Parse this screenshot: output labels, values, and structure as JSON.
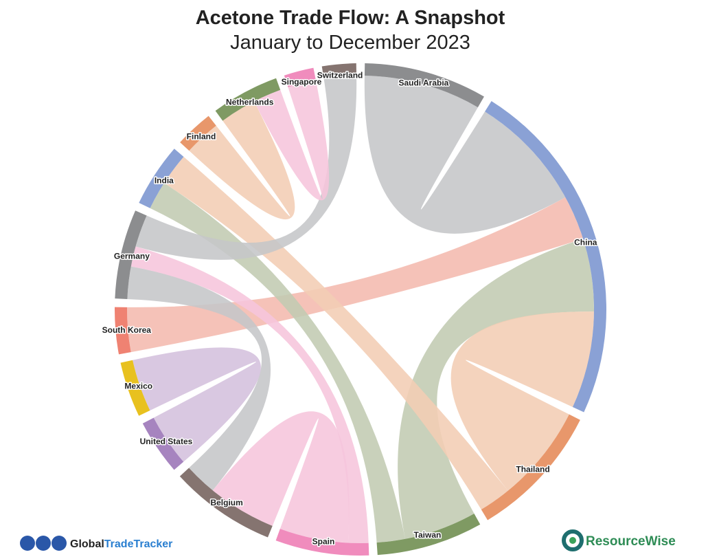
{
  "chart_data": {
    "type": "chord",
    "title": "Acetone Trade Flow: A Snapshot",
    "subtitle": "January to December 2023",
    "nodes": [
      {
        "name": "Saudi Arabia",
        "color": "#8c8d8f"
      },
      {
        "name": "China",
        "color": "#8aa1d5"
      },
      {
        "name": "Thailand",
        "color": "#e8976b"
      },
      {
        "name": "Taiwan",
        "color": "#7f9a63"
      },
      {
        "name": "Spain",
        "color": "#f08cbd"
      },
      {
        "name": "Belgium",
        "color": "#857470"
      },
      {
        "name": "United States",
        "color": "#a684bf"
      },
      {
        "name": "Mexico",
        "color": "#e8c11f"
      },
      {
        "name": "South Korea",
        "color": "#ef8272"
      },
      {
        "name": "Germany",
        "color": "#8c8d8f"
      },
      {
        "name": "India",
        "color": "#8aa1d5"
      },
      {
        "name": "Finland",
        "color": "#e8976b"
      },
      {
        "name": "Netherlands",
        "color": "#7f9a63"
      },
      {
        "name": "Singapore",
        "color": "#f08cbd"
      },
      {
        "name": "Switzerland",
        "color": "#857470"
      }
    ],
    "flows": [
      {
        "source": "Saudi Arabia",
        "target": "China",
        "value": 29,
        "color": "#c5c6c8"
      },
      {
        "source": "South Korea",
        "target": "China",
        "value": 11,
        "color": "#f4b9ae"
      },
      {
        "source": "China",
        "target": "Taiwan",
        "value": 18,
        "color": "#c1cbb2"
      },
      {
        "source": "China",
        "target": "Thailand",
        "value": 24,
        "color": "#f2cdb4"
      },
      {
        "source": "India",
        "target": "Thailand",
        "value": 8,
        "color": "#f2cdb4"
      },
      {
        "source": "India",
        "target": "Taiwan",
        "value": 7,
        "color": "#c1cbb2"
      },
      {
        "source": "Switzerland",
        "target": "Germany",
        "value": 8,
        "color": "#c5c6c8"
      },
      {
        "source": "Germany",
        "target": "Belgium",
        "value": 8,
        "color": "#c5c6c8"
      },
      {
        "source": "Germany",
        "target": "Spain",
        "value": 5,
        "color": "#f6c5dc"
      },
      {
        "source": "Belgium",
        "target": "Spain",
        "value": 17,
        "color": "#f6c5dc"
      },
      {
        "source": "Mexico",
        "target": "United States",
        "value": 13,
        "color": "#d4c0dd"
      },
      {
        "source": "Finland",
        "target": "Netherlands",
        "value": 9,
        "color": "#f2cdb4"
      },
      {
        "source": "Singapore",
        "target": "Netherlands",
        "value": 7,
        "color": "#f6c5dc"
      }
    ]
  },
  "branding": {
    "left_prefix": "Global",
    "left_suffix": "TradeTracker",
    "right": "ResourceWise"
  }
}
